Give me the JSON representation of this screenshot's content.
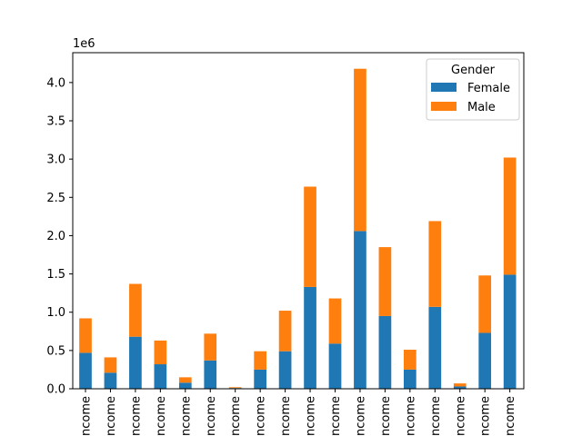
{
  "chart_data": {
    "type": "bar",
    "stacked": true,
    "categories": [
      "ncome",
      "ncome",
      "ncome",
      "ncome",
      "ncome",
      "ncome",
      "ncome",
      "ncome",
      "ncome",
      "ncome",
      "ncome",
      "ncome",
      "ncome",
      "ncome",
      "ncome",
      "ncome",
      "ncome",
      "ncome"
    ],
    "series": [
      {
        "name": "Female",
        "color": "#1f77b4",
        "values": [
          470000,
          210000,
          680000,
          320000,
          80000,
          370000,
          10000,
          250000,
          490000,
          1330000,
          590000,
          2060000,
          950000,
          250000,
          1070000,
          30000,
          730000,
          1490000
        ]
      },
      {
        "name": "Male",
        "color": "#ff7f0e",
        "values": [
          450000,
          200000,
          690000,
          310000,
          70000,
          350000,
          10000,
          240000,
          530000,
          1310000,
          590000,
          2120000,
          900000,
          260000,
          1120000,
          40000,
          750000,
          1530000
        ]
      }
    ],
    "yticks": [
      "0.0",
      "0.5",
      "1.0",
      "1.5",
      "2.0",
      "2.5",
      "3.0",
      "3.5",
      "4.0"
    ],
    "ytick_values": [
      0,
      500000,
      1000000,
      1500000,
      2000000,
      2500000,
      3000000,
      3500000,
      4000000
    ],
    "y_multiplier": "1e6",
    "ylim": [
      0,
      4390000
    ],
    "legend": {
      "title": "Gender",
      "position": "top-right"
    },
    "grid": false
  }
}
